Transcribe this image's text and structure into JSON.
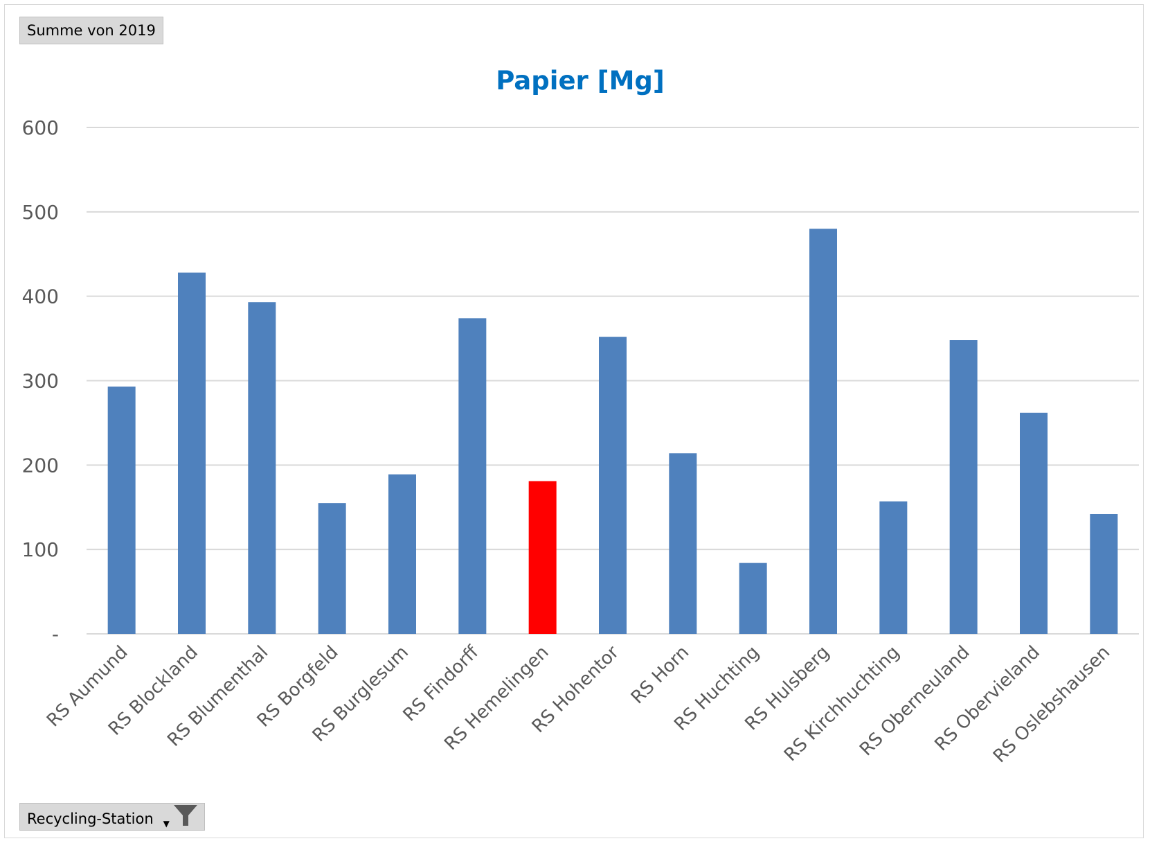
{
  "filter_value_button": {
    "label": "Summe von 2019"
  },
  "filter_row_button": {
    "label": "Recycling-Station"
  },
  "chart_data": {
    "type": "bar",
    "title": "Papier [Mg]",
    "xlabel": "",
    "ylabel": "",
    "ylim": [
      0,
      600
    ],
    "yticks": [
      0,
      100,
      200,
      300,
      400,
      500,
      600
    ],
    "ytick_labels": [
      "-",
      "100",
      "200",
      "300",
      "400",
      "500",
      "600"
    ],
    "grid": true,
    "legend": "none",
    "categories": [
      "RS Aumund",
      "RS Blockland",
      "RS Blumenthal",
      "RS Borgfeld",
      "RS Burglesum",
      "RS Findorff",
      "RS Hemelingen",
      "RS Hohentor",
      "RS Horn",
      "RS Huchting",
      "RS Hulsberg",
      "RS Kirchhuchting",
      "RS Oberneuland",
      "RS Obervieland",
      "RS Oslebshausen"
    ],
    "values": [
      293,
      428,
      393,
      155,
      189,
      374,
      181,
      352,
      214,
      84,
      480,
      157,
      348,
      262,
      142
    ],
    "colors": {
      "default": "#4f81bd",
      "highlight": "#ff0000",
      "title": "#0070c0",
      "grid": "#d9d9d9",
      "axis_text": "#595959"
    },
    "highlight_category": "RS Hemelingen"
  }
}
